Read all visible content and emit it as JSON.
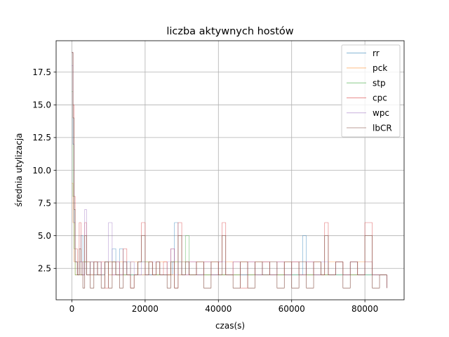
{
  "chart_data": {
    "type": "line",
    "title": "liczba aktywnych hostów",
    "xlabel": "czas(s)",
    "ylabel": "średnia utylizacja",
    "xlim": [
      -4300,
      90700
    ],
    "ylim": [
      0.1,
      19.9
    ],
    "xticks": [
      0,
      20000,
      40000,
      60000,
      80000
    ],
    "xtick_labels": [
      "0",
      "20000",
      "40000",
      "60000",
      "80000"
    ],
    "yticks": [
      2.5,
      5.0,
      7.5,
      10.0,
      12.5,
      15.0,
      17.5
    ],
    "ytick_labels": [
      "2.5",
      "5.0",
      "7.5",
      "10.0",
      "12.5",
      "15.0",
      "17.5"
    ],
    "grid": true,
    "legend_position": "top-right",
    "series": [
      {
        "name": "rr",
        "color": "#1f77b4",
        "x": [
          0,
          300,
          600,
          900,
          1500,
          2000,
          2500,
          3000,
          3500,
          4000,
          5000,
          6000,
          7000,
          8000,
          9000,
          10000,
          11000,
          12000,
          13000,
          14000,
          15000,
          16000,
          18000,
          20000,
          22000,
          24000,
          26000,
          27500,
          28000,
          29000,
          30000,
          32000,
          34000,
          36000,
          38000,
          40000,
          42000,
          44000,
          46000,
          48000,
          50000,
          52000,
          54000,
          56000,
          58000,
          60000,
          62000,
          63000,
          64000,
          66000,
          68000,
          69000,
          70000,
          72000,
          74000,
          76000,
          78000,
          80000,
          82000,
          84000,
          86000
        ],
        "y": [
          19,
          12,
          6,
          3,
          2,
          3,
          5,
          2,
          3,
          2,
          3,
          2,
          3,
          2,
          3,
          2,
          4,
          2,
          4,
          2,
          3,
          2,
          2,
          2,
          2,
          2,
          2,
          3,
          6,
          2,
          3,
          2,
          2,
          2,
          2,
          2,
          2,
          2,
          2,
          2,
          2,
          2,
          2,
          2,
          2,
          2,
          2,
          5,
          2,
          2,
          2,
          2,
          2,
          2,
          2,
          2,
          2,
          2,
          2,
          2,
          2
        ]
      },
      {
        "name": "pck",
        "color": "#ff7f0e",
        "x": [
          0,
          300,
          600,
          900,
          1500,
          2000,
          3000,
          4000,
          5000,
          6000,
          7000,
          8000,
          9000,
          10000,
          11000,
          12000,
          13000,
          14000,
          16000,
          18000,
          20000,
          22000,
          24000,
          26000,
          28000,
          29000,
          30000,
          32000,
          34000,
          36000,
          38000,
          40000,
          42000,
          44000,
          46000,
          48000,
          50000,
          54000,
          58000,
          62000,
          66000,
          68000,
          70000,
          74000,
          78000,
          82000,
          86000
        ],
        "y": [
          9,
          6,
          3,
          2,
          3,
          2,
          3,
          2,
          3,
          2,
          3,
          2,
          3,
          2,
          3,
          2,
          3,
          2,
          3,
          2,
          3,
          2,
          3,
          2,
          3,
          2,
          3,
          2,
          3,
          2,
          3,
          2,
          3,
          2,
          3,
          2,
          3,
          2,
          3,
          2,
          3,
          2,
          3,
          2,
          3,
          2,
          2
        ]
      },
      {
        "name": "stp",
        "color": "#2ca02c",
        "x": [
          0,
          300,
          600,
          900,
          1500,
          3000,
          5000,
          7000,
          9000,
          12000,
          15000,
          18000,
          21000,
          24000,
          27000,
          30000,
          31000,
          32000,
          36000,
          40000,
          44000,
          48000,
          52000,
          56000,
          60000,
          64000,
          68000,
          72000,
          76000,
          80000,
          84000,
          86000
        ],
        "y": [
          16,
          8,
          4,
          2,
          2,
          3,
          2,
          2,
          3,
          2,
          2,
          3,
          2,
          2,
          3,
          2,
          5,
          2,
          2,
          2,
          2,
          2,
          2,
          2,
          2,
          2,
          2,
          2,
          2,
          2,
          2,
          2
        ]
      },
      {
        "name": "cpc",
        "color": "#d62728",
        "x": [
          0,
          300,
          600,
          900,
          1500,
          2000,
          2500,
          3000,
          3500,
          4000,
          5000,
          6000,
          7000,
          8000,
          9000,
          10000,
          11000,
          12000,
          13000,
          14000,
          15000,
          16000,
          17000,
          18000,
          19000,
          20000,
          21000,
          22000,
          23000,
          24000,
          25000,
          26000,
          27000,
          28000,
          29000,
          30000,
          32000,
          34000,
          36000,
          38000,
          40000,
          41000,
          42000,
          44000,
          46000,
          48000,
          50000,
          52000,
          54000,
          56000,
          58000,
          60000,
          62000,
          64000,
          66000,
          68000,
          69000,
          70000,
          72000,
          74000,
          76000,
          78000,
          80000,
          82000,
          84000,
          86000
        ],
        "y": [
          19,
          15,
          8,
          4,
          2,
          6,
          3,
          2,
          6,
          3,
          2,
          3,
          2,
          3,
          1,
          3,
          2,
          3,
          2,
          4,
          2,
          1,
          2,
          3,
          6,
          2,
          3,
          2,
          3,
          2,
          3,
          2,
          4,
          1,
          6,
          2,
          3,
          2,
          3,
          2,
          3,
          6,
          2,
          3,
          1,
          3,
          2,
          3,
          2,
          3,
          2,
          3,
          2,
          3,
          2,
          2,
          6,
          2,
          3,
          2,
          3,
          2,
          6,
          2,
          2,
          1
        ]
      },
      {
        "name": "wpc",
        "color": "#9467bd",
        "x": [
          0,
          300,
          600,
          900,
          1500,
          2000,
          3000,
          3500,
          4000,
          5000,
          6000,
          7000,
          8000,
          9000,
          10000,
          11000,
          12000,
          13000,
          14000,
          15000,
          16000,
          17000,
          18000,
          19000,
          20000,
          22000,
          24000,
          26000,
          27000,
          28000,
          29000,
          30000,
          32000,
          34000,
          36000,
          38000,
          40000,
          42000,
          44000,
          46000,
          48000,
          50000,
          52000,
          54000,
          56000,
          58000,
          60000,
          62000,
          64000,
          66000,
          68000,
          70000,
          72000,
          74000,
          76000,
          78000,
          80000,
          82000,
          84000,
          86000
        ],
        "y": [
          18,
          12,
          6,
          3,
          2,
          3,
          2,
          7,
          2,
          3,
          2,
          3,
          2,
          3,
          6,
          2,
          3,
          2,
          3,
          2,
          3,
          2,
          2,
          3,
          2,
          3,
          2,
          3,
          4,
          2,
          3,
          2,
          3,
          2,
          3,
          2,
          3,
          2,
          3,
          2,
          3,
          2,
          3,
          2,
          3,
          2,
          3,
          2,
          3,
          2,
          3,
          2,
          3,
          2,
          3,
          2,
          3,
          2,
          2,
          1
        ]
      },
      {
        "name": "lbCR",
        "color": "#8c564b",
        "x": [
          0,
          300,
          600,
          900,
          1500,
          2000,
          2500,
          3000,
          3500,
          4000,
          5000,
          6000,
          7000,
          8000,
          9000,
          10000,
          11000,
          12000,
          13000,
          14000,
          15000,
          16000,
          17000,
          18000,
          19000,
          20000,
          21000,
          22000,
          23000,
          24000,
          25000,
          26000,
          27000,
          28000,
          29000,
          30000,
          31000,
          32000,
          34000,
          36000,
          38000,
          40000,
          41000,
          42000,
          44000,
          46000,
          48000,
          50000,
          52000,
          54000,
          56000,
          58000,
          60000,
          62000,
          64000,
          66000,
          68000,
          69000,
          70000,
          72000,
          74000,
          76000,
          78000,
          80000,
          82000,
          84000,
          86000
        ],
        "y": [
          19,
          14,
          7,
          3,
          2,
          4,
          2,
          1,
          5,
          2,
          1,
          3,
          2,
          1,
          3,
          1,
          3,
          2,
          1,
          3,
          2,
          1,
          2,
          3,
          5,
          2,
          3,
          2,
          3,
          2,
          2,
          1,
          3,
          1,
          5,
          2,
          3,
          2,
          3,
          1,
          3,
          2,
          5,
          2,
          1,
          3,
          1,
          3,
          2,
          3,
          1,
          3,
          1,
          3,
          1,
          3,
          2,
          5,
          2,
          3,
          1,
          3,
          2,
          5,
          1,
          2,
          1
        ]
      }
    ]
  }
}
